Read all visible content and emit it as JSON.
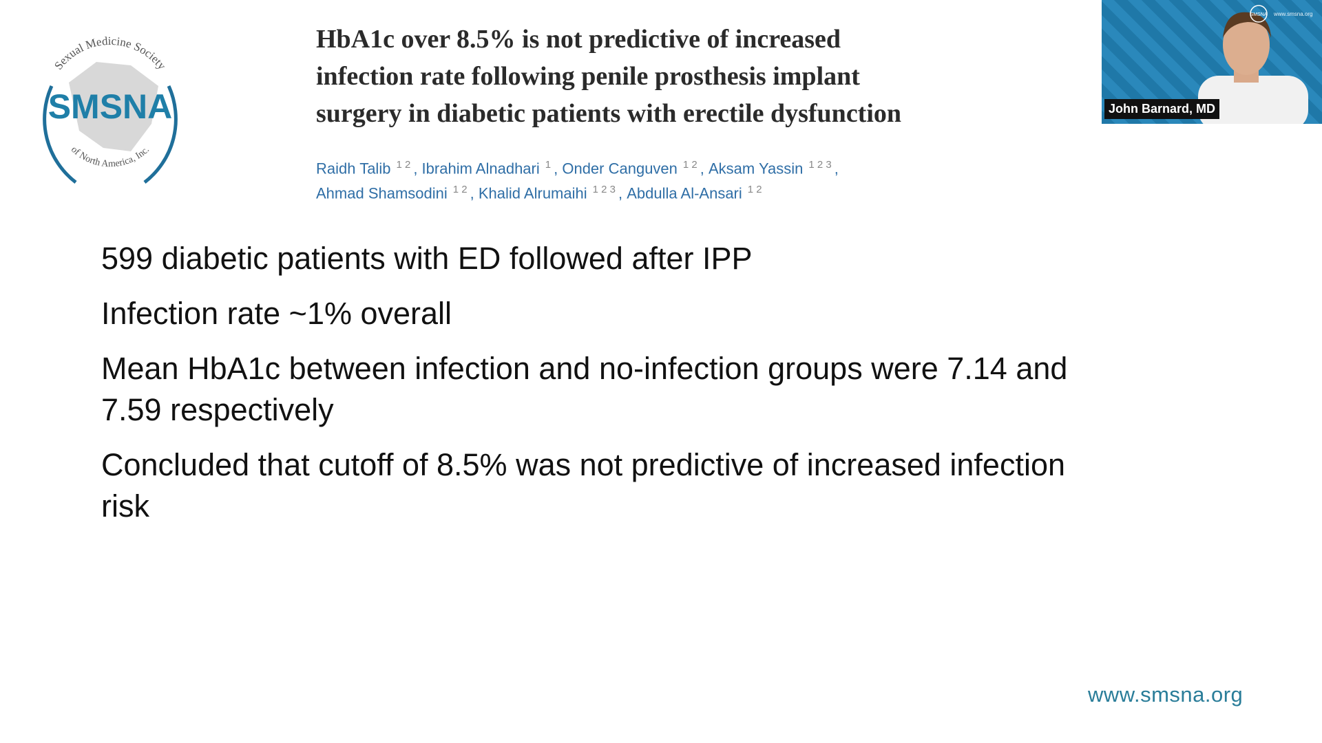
{
  "logo": {
    "arc_top": "Sexual Medicine Society",
    "acronym": "SMSNA",
    "arc_bottom": "of North America, Inc."
  },
  "article": {
    "title_lines": [
      "HbA1c over 8.5% is not predictive of increased",
      "infection rate following penile prosthesis implant",
      "surgery in diabetic patients with erectile dysfunction"
    ],
    "author_lines": [
      [
        {
          "name": "Raidh Talib",
          "affiliations": "1 2"
        },
        {
          "name": "Ibrahim Alnadhari",
          "affiliations": "1"
        },
        {
          "name": "Onder Canguven",
          "affiliations": "1 2"
        },
        {
          "name": "Aksam Yassin",
          "affiliations": "1 2 3"
        }
      ],
      [
        {
          "name": "Ahmad Shamsodini",
          "affiliations": "1 2"
        },
        {
          "name": "Khalid Alrumaihi",
          "affiliations": "1 2 3"
        },
        {
          "name": "Abdulla Al-Ansari",
          "affiliations": "1 2"
        }
      ]
    ]
  },
  "bullets": [
    [
      "599 diabetic patients with ED followed after IPP"
    ],
    [
      "Infection rate ~1% overall"
    ],
    [
      "Mean HbA1c between infection and no-infection groups were 7.14 and",
      "7.59 respectively"
    ],
    [
      "Concluded that cutoff of 8.5% was not predictive of increased infection",
      "risk"
    ]
  ],
  "webcam": {
    "name": "John Barnard, MD",
    "badge": "SMSNA",
    "site": "www.smsna.org"
  },
  "footer": {
    "url": "www.smsna.org"
  }
}
